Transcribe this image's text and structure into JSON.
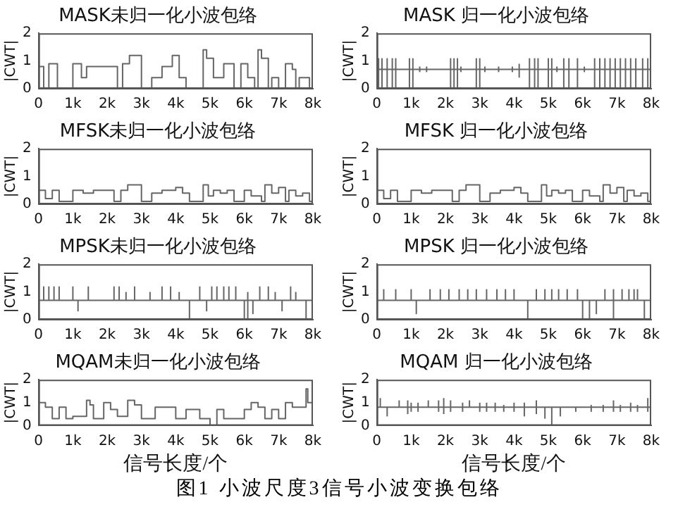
{
  "chart_data": [
    {
      "type": "step",
      "title": "MASK未归一化小波包络",
      "ylabel": "|CWT|",
      "color": "#666666",
      "grid": false,
      "marker": "none",
      "xlim": [
        0,
        8000
      ],
      "ylim": [
        0,
        2
      ],
      "yticks": [
        0,
        1,
        2
      ],
      "xticks": [
        {
          "value": 0,
          "label": "0"
        },
        {
          "value": 1000,
          "label": "1k"
        },
        {
          "value": 2000,
          "label": "2k"
        },
        {
          "value": 3000,
          "label": "3k"
        },
        {
          "value": 4000,
          "label": "4k"
        },
        {
          "value": 5000,
          "label": "5k"
        },
        {
          "value": 6000,
          "label": "6k"
        },
        {
          "value": 7000,
          "label": "7k"
        },
        {
          "value": 8000,
          "label": "8k"
        }
      ],
      "x": [
        0,
        150,
        300,
        550,
        1000,
        1250,
        1400,
        2300,
        2450,
        2650,
        3000,
        3300,
        3600,
        3900,
        4100,
        4300,
        4800,
        4900,
        5100,
        5400,
        5700,
        5900,
        6100,
        6300,
        6400,
        6500,
        6700,
        6800,
        7000,
        7200,
        7400,
        7500,
        7600,
        7900,
        8000
      ],
      "values": [
        0.8,
        0,
        0.9,
        0,
        0.9,
        0.4,
        0.8,
        0,
        0.9,
        1.2,
        0,
        0.4,
        0.8,
        1.2,
        0.4,
        0,
        1.4,
        1.1,
        0.4,
        0.9,
        0,
        0.9,
        0.4,
        0,
        1.4,
        1.1,
        0,
        0.4,
        0,
        0.9,
        0.7,
        0,
        0.4,
        0,
        0
      ]
    },
    {
      "type": "line",
      "title": "MASK 归一化小波包络",
      "ylabel": "|CWT|",
      "color": "#666666",
      "grid": false,
      "marker": "none",
      "xlim": [
        0,
        8000
      ],
      "ylim": [
        0,
        2
      ],
      "yticks": [
        0,
        1,
        2
      ],
      "xticks": [
        {
          "value": 0,
          "label": "0"
        },
        {
          "value": 1000,
          "label": "1k"
        },
        {
          "value": 2000,
          "label": "2k"
        },
        {
          "value": 3000,
          "label": "3k"
        },
        {
          "value": 4000,
          "label": "4k"
        },
        {
          "value": 5000,
          "label": "5k"
        },
        {
          "value": 6000,
          "label": "6k"
        },
        {
          "value": 7000,
          "label": "7k"
        },
        {
          "value": 8000,
          "label": "8k"
        }
      ],
      "x": [
        0,
        50,
        150,
        300,
        450,
        550,
        950,
        1050,
        1250,
        1450,
        2150,
        2250,
        2350,
        2450,
        2900,
        3000,
        3150,
        3550,
        3950,
        4150,
        4450,
        4600,
        4700,
        5000,
        5100,
        5250,
        5450,
        5600,
        5850,
        6050,
        6350,
        6500,
        6650,
        6800,
        6950,
        7100,
        7250,
        7400,
        7550,
        7750,
        7900,
        8000
      ],
      "values": [
        0.7,
        0.7,
        0.7,
        0.7,
        0.7,
        0.7,
        0.7,
        0.7,
        0.7,
        0.7,
        0.7,
        0.7,
        0.7,
        0.7,
        0.7,
        0.7,
        0.7,
        0.7,
        0.7,
        0.7,
        0.7,
        0.7,
        0.7,
        0.7,
        0.7,
        0.7,
        0.7,
        0.7,
        0.7,
        0.7,
        0.7,
        0.7,
        0.7,
        0.7,
        0.7,
        0.7,
        0.7,
        0.7,
        0.7,
        0.7,
        0.7,
        0.7
      ],
      "errors": [
        null,
        [
          0,
          1.1
        ],
        [
          0,
          1.1
        ],
        [
          0,
          1.1
        ],
        [
          0,
          1.1
        ],
        [
          0,
          1.1
        ],
        [
          0,
          1.1
        ],
        [
          0,
          1.1
        ],
        [
          0.6,
          0.8
        ],
        [
          0.6,
          0.8
        ],
        [
          0,
          1.1
        ],
        [
          0,
          1.1
        ],
        [
          0,
          1.1
        ],
        [
          0.6,
          0.8
        ],
        [
          0,
          1.1
        ],
        [
          0,
          1.1
        ],
        [
          0.6,
          0.8
        ],
        [
          0.6,
          0.8
        ],
        [
          0.6,
          0.8
        ],
        [
          0.4,
          0.9
        ],
        [
          0,
          1.1
        ],
        [
          0,
          1.1
        ],
        [
          0,
          1.1
        ],
        [
          0,
          1.1
        ],
        [
          0,
          1.1
        ],
        [
          0.6,
          0.8
        ],
        [
          0,
          1.1
        ],
        [
          0,
          1.1
        ],
        [
          0,
          1.1
        ],
        [
          0.6,
          0.8
        ],
        [
          0,
          1.1
        ],
        [
          0,
          1.1
        ],
        [
          0,
          1.1
        ],
        [
          0,
          1.1
        ],
        [
          0,
          1.1
        ],
        [
          0,
          1.1
        ],
        [
          0,
          1.1
        ],
        [
          0,
          1.1
        ],
        [
          0,
          1.1
        ],
        [
          0,
          1.1
        ],
        [
          0,
          1.1
        ],
        null
      ]
    },
    {
      "type": "step",
      "title": "MFSK未归一化小波包络",
      "ylabel": "|CWT|",
      "color": "#666666",
      "grid": false,
      "marker": "none",
      "xlim": [
        0,
        8000
      ],
      "ylim": [
        0,
        2
      ],
      "yticks": [
        0,
        1,
        2
      ],
      "xticks": [
        {
          "value": 0,
          "label": "0"
        },
        {
          "value": 1000,
          "label": "1k"
        },
        {
          "value": 2000,
          "label": "2k"
        },
        {
          "value": 3000,
          "label": "3k"
        },
        {
          "value": 4000,
          "label": "4k"
        },
        {
          "value": 5000,
          "label": "5k"
        },
        {
          "value": 6000,
          "label": "6k"
        },
        {
          "value": 7000,
          "label": "7k"
        },
        {
          "value": 8000,
          "label": "8k"
        }
      ],
      "x": [
        0,
        200,
        400,
        600,
        1000,
        1300,
        1600,
        2200,
        2400,
        2600,
        3000,
        3300,
        3600,
        4000,
        4200,
        4400,
        4800,
        4950,
        5100,
        5300,
        5500,
        5700,
        6000,
        6200,
        6500,
        6600,
        6800,
        7000,
        7200,
        7300,
        7500,
        7700,
        7900,
        8000
      ],
      "values": [
        0.5,
        0.2,
        0.5,
        0.1,
        0.5,
        0.4,
        0.5,
        0.1,
        0.5,
        0.7,
        0.1,
        0.4,
        0.5,
        0.6,
        0.4,
        0.1,
        0.7,
        0.3,
        0.5,
        0.4,
        0.5,
        0.1,
        0.5,
        0.3,
        0.1,
        0.7,
        0.4,
        0.6,
        0.1,
        0.5,
        0.3,
        0.4,
        0.1,
        0.1
      ]
    },
    {
      "type": "step",
      "title": "MFSK 归一化小波包络",
      "ylabel": "|CWT|",
      "color": "#666666",
      "grid": false,
      "marker": "none",
      "xlim": [
        0,
        8000
      ],
      "ylim": [
        0,
        2
      ],
      "yticks": [
        0,
        1,
        2
      ],
      "xticks": [
        {
          "value": 0,
          "label": "0"
        },
        {
          "value": 1000,
          "label": "1k"
        },
        {
          "value": 2000,
          "label": "2k"
        },
        {
          "value": 3000,
          "label": "3k"
        },
        {
          "value": 4000,
          "label": "4k"
        },
        {
          "value": 5000,
          "label": "5k"
        },
        {
          "value": 6000,
          "label": "6k"
        },
        {
          "value": 7000,
          "label": "7k"
        },
        {
          "value": 8000,
          "label": "8k"
        }
      ],
      "x": [
        0,
        200,
        400,
        600,
        1000,
        1300,
        1600,
        2200,
        2400,
        2600,
        3000,
        3300,
        3600,
        4000,
        4200,
        4400,
        4800,
        4950,
        5100,
        5300,
        5500,
        5700,
        6000,
        6200,
        6500,
        6600,
        6800,
        7000,
        7200,
        7300,
        7500,
        7700,
        7900,
        8000
      ],
      "values": [
        0.5,
        0.2,
        0.5,
        0.1,
        0.5,
        0.4,
        0.5,
        0.1,
        0.5,
        0.7,
        0.1,
        0.4,
        0.5,
        0.6,
        0.4,
        0.1,
        0.7,
        0.3,
        0.5,
        0.4,
        0.5,
        0.1,
        0.5,
        0.3,
        0.1,
        0.7,
        0.4,
        0.6,
        0.1,
        0.5,
        0.3,
        0.4,
        0.1,
        0.1
      ]
    },
    {
      "type": "line",
      "title": "MPSK未归一化小波包络",
      "ylabel": "|CWT|",
      "color": "#666666",
      "grid": false,
      "marker": "none",
      "xlim": [
        0,
        8000
      ],
      "ylim": [
        0,
        2
      ],
      "yticks": [
        0,
        1,
        2
      ],
      "xticks": [
        {
          "value": 0,
          "label": "0"
        },
        {
          "value": 1000,
          "label": "1k"
        },
        {
          "value": 2000,
          "label": "2k"
        },
        {
          "value": 3000,
          "label": "3k"
        },
        {
          "value": 4000,
          "label": "4k"
        },
        {
          "value": 5000,
          "label": "5k"
        },
        {
          "value": 6000,
          "label": "6k"
        },
        {
          "value": 7000,
          "label": "7k"
        },
        {
          "value": 8000,
          "label": "8k"
        }
      ],
      "x": [
        0,
        150,
        300,
        450,
        600,
        1000,
        1150,
        1450,
        2200,
        2350,
        2550,
        2800,
        3250,
        3600,
        3850,
        4100,
        4400,
        4700,
        4900,
        5050,
        5200,
        5400,
        5550,
        5750,
        6000,
        6100,
        6250,
        6450,
        6700,
        6900,
        7100,
        7350,
        7500,
        7800,
        8000
      ],
      "values": [
        0.7,
        0.7,
        0.7,
        0.7,
        0.7,
        0.7,
        0.7,
        0.7,
        0.7,
        0.7,
        0.7,
        0.7,
        0.7,
        0.7,
        0.7,
        0.7,
        0.7,
        0.7,
        0.7,
        0.7,
        0.7,
        0.7,
        0.7,
        0.7,
        0.7,
        0.7,
        0.7,
        0.7,
        0.7,
        0.7,
        0.7,
        0.7,
        0.7,
        0.7,
        0.7
      ],
      "errors": [
        null,
        [
          0.7,
          1.2
        ],
        [
          0.7,
          1.2
        ],
        [
          0.7,
          1.2
        ],
        [
          0.7,
          1.2
        ],
        [
          0.7,
          1.2
        ],
        [
          0.3,
          0.7
        ],
        [
          0.7,
          1.2
        ],
        [
          0.7,
          1.2
        ],
        [
          0.7,
          1.2
        ],
        [
          0.7,
          1.0
        ],
        [
          0.7,
          1.2
        ],
        [
          0.7,
          1.0
        ],
        [
          0.7,
          1.2
        ],
        [
          0.7,
          1.2
        ],
        [
          0.7,
          1.0
        ],
        [
          0,
          0.7
        ],
        [
          0.7,
          1.2
        ],
        [
          0.3,
          0.7
        ],
        [
          0.7,
          1.2
        ],
        [
          0.7,
          1.2
        ],
        [
          0.7,
          1.2
        ],
        [
          0.7,
          1.2
        ],
        [
          0.7,
          1.2
        ],
        [
          0,
          0.7
        ],
        [
          0,
          1.0
        ],
        [
          0.2,
          0.7
        ],
        [
          0.7,
          1.2
        ],
        [
          0.7,
          1.2
        ],
        [
          0.7,
          1.0
        ],
        [
          0.3,
          0.7
        ],
        [
          0.7,
          1.2
        ],
        [
          0.7,
          1.0
        ],
        [
          0,
          0.7
        ],
        null
      ]
    },
    {
      "type": "line",
      "title": "MPSK 归一化小波包络",
      "ylabel": "|CWT|",
      "color": "#666666",
      "grid": false,
      "marker": "none",
      "xlim": [
        0,
        8000
      ],
      "ylim": [
        0,
        2
      ],
      "yticks": [
        0,
        1,
        2
      ],
      "xticks": [
        {
          "value": 0,
          "label": "0"
        },
        {
          "value": 1000,
          "label": "1k"
        },
        {
          "value": 2000,
          "label": "2k"
        },
        {
          "value": 3000,
          "label": "3k"
        },
        {
          "value": 4000,
          "label": "4k"
        },
        {
          "value": 5000,
          "label": "5k"
        },
        {
          "value": 6000,
          "label": "6k"
        },
        {
          "value": 7000,
          "label": "7k"
        },
        {
          "value": 8000,
          "label": "8k"
        }
      ],
      "x": [
        0,
        200,
        550,
        1000,
        1150,
        1550,
        1850,
        2100,
        2400,
        2650,
        2900,
        3200,
        3500,
        3750,
        4000,
        4400,
        4650,
        4900,
        5100,
        5300,
        5550,
        5850,
        6000,
        6200,
        6400,
        6650,
        6900,
        7150,
        7350,
        7500,
        7600,
        7800,
        8000
      ],
      "values": [
        0.7,
        0.7,
        0.7,
        0.7,
        0.7,
        0.7,
        0.7,
        0.7,
        0.7,
        0.7,
        0.7,
        0.7,
        0.7,
        0.7,
        0.7,
        0.7,
        0.7,
        0.7,
        0.7,
        0.7,
        0.7,
        0.7,
        0.7,
        0.7,
        0.7,
        0.7,
        0.7,
        0.7,
        0.7,
        0.7,
        0.7,
        0.7,
        0.7
      ],
      "errors": [
        null,
        [
          0.7,
          1.1
        ],
        [
          0.7,
          1.1
        ],
        [
          0.7,
          1.1
        ],
        [
          0.2,
          0.7
        ],
        [
          0.7,
          1.1
        ],
        [
          0.7,
          1.1
        ],
        [
          0.7,
          1.1
        ],
        [
          0.7,
          1.1
        ],
        [
          0.7,
          1.1
        ],
        [
          0.7,
          1.1
        ],
        [
          0.7,
          1.1
        ],
        [
          0.7,
          1.1
        ],
        [
          0.7,
          1.1
        ],
        [
          0.7,
          1.1
        ],
        [
          0,
          0.7
        ],
        [
          0.7,
          1.1
        ],
        [
          0.7,
          1.1
        ],
        [
          0.7,
          1.1
        ],
        [
          0.7,
          1.1
        ],
        [
          0.7,
          1.1
        ],
        [
          0.7,
          1.1
        ],
        [
          0,
          0.7
        ],
        [
          0,
          0.7
        ],
        [
          0.2,
          0.7
        ],
        [
          0.7,
          1.1
        ],
        [
          0,
          1.1
        ],
        [
          0.7,
          1.1
        ],
        [
          0.7,
          1.1
        ],
        [
          0.7,
          1.1
        ],
        [
          0.7,
          1.1
        ],
        [
          0,
          0.7
        ],
        null
      ]
    },
    {
      "type": "step",
      "title": "MQAM未归一化小波包络",
      "ylabel": "|CWT|",
      "xlabel": "信号长度/个",
      "color": "#666666",
      "grid": false,
      "marker": "none",
      "xlim": [
        0,
        8000
      ],
      "ylim": [
        0,
        2
      ],
      "yticks": [
        0,
        1,
        2
      ],
      "xticks": [
        {
          "value": 0,
          "label": "0"
        },
        {
          "value": 1000,
          "label": "1k"
        },
        {
          "value": 2000,
          "label": "2k"
        },
        {
          "value": 3000,
          "label": "3k"
        },
        {
          "value": 4000,
          "label": "4k"
        },
        {
          "value": 5000,
          "label": "5k"
        },
        {
          "value": 6000,
          "label": "6k"
        },
        {
          "value": 7000,
          "label": "7k"
        },
        {
          "value": 8000,
          "label": "8k"
        }
      ],
      "x": [
        0,
        200,
        400,
        600,
        800,
        1000,
        1400,
        1500,
        1600,
        1900,
        2100,
        2300,
        2600,
        2800,
        3000,
        3400,
        4000,
        4300,
        4700,
        5000,
        5200,
        5400,
        6000,
        6200,
        6400,
        6600,
        6800,
        7000,
        7200,
        7400,
        7800,
        7850,
        8000
      ],
      "values": [
        1.0,
        0.8,
        0.3,
        0.8,
        0.3,
        0.4,
        1.1,
        0.9,
        0.3,
        1.0,
        0.7,
        0.4,
        1.1,
        0.9,
        0.3,
        0.8,
        0.3,
        0.7,
        0.3,
        0,
        0.7,
        0.3,
        0.7,
        1.0,
        0.8,
        0.3,
        0.7,
        0.3,
        1.0,
        0.8,
        1.6,
        1.0,
        1.0
      ]
    },
    {
      "type": "line",
      "title": "MQAM 归一化小波包络",
      "ylabel": "|CWT|",
      "xlabel": "信号长度/个",
      "color": "#666666",
      "grid": false,
      "marker": "none",
      "xlim": [
        0,
        8000
      ],
      "ylim": [
        0,
        2
      ],
      "yticks": [
        0,
        1,
        2
      ],
      "xticks": [
        {
          "value": 0,
          "label": "0"
        },
        {
          "value": 1000,
          "label": "1k"
        },
        {
          "value": 2000,
          "label": "2k"
        },
        {
          "value": 3000,
          "label": "3k"
        },
        {
          "value": 4000,
          "label": "4k"
        },
        {
          "value": 5000,
          "label": "5k"
        },
        {
          "value": 6000,
          "label": "6k"
        },
        {
          "value": 7000,
          "label": "7k"
        },
        {
          "value": 8000,
          "label": "8k"
        }
      ],
      "x": [
        0,
        100,
        300,
        650,
        900,
        1000,
        1200,
        1500,
        1800,
        1950,
        2150,
        2500,
        2700,
        3000,
        3200,
        3450,
        3700,
        4000,
        4300,
        4650,
        4900,
        5100,
        5350,
        5800,
        6250,
        6600,
        6900,
        7100,
        7400,
        7600,
        7900,
        8000
      ],
      "values": [
        0.8,
        0.8,
        0.8,
        0.8,
        0.8,
        0.8,
        0.8,
        0.8,
        0.8,
        0.8,
        0.8,
        0.8,
        0.8,
        0.8,
        0.8,
        0.8,
        0.8,
        0.8,
        0.8,
        0.8,
        0.8,
        0.8,
        0.8,
        0.8,
        0.8,
        0.8,
        0.8,
        0.8,
        0.8,
        0.8,
        0.8,
        0.8
      ],
      "errors": [
        null,
        [
          0.8,
          1.2
        ],
        [
          0.4,
          0.8
        ],
        [
          0.8,
          1.1
        ],
        [
          0.5,
          1.1
        ],
        [
          0.6,
          1.0
        ],
        [
          0.6,
          1.0
        ],
        [
          0.8,
          1.1
        ],
        [
          0.6,
          1.1
        ],
        [
          0.5,
          1.2
        ],
        [
          0.6,
          1.1
        ],
        [
          0.6,
          1.0
        ],
        [
          0.8,
          1.1
        ],
        [
          0.6,
          1.0
        ],
        [
          0.6,
          1.0
        ],
        [
          0.6,
          1.0
        ],
        [
          0.6,
          0.9
        ],
        [
          0.6,
          1.0
        ],
        [
          0.4,
          1.0
        ],
        [
          0.5,
          1.1
        ],
        [
          0.3,
          0.8
        ],
        [
          0,
          0.8
        ],
        [
          0.4,
          0.8
        ],
        [
          0.6,
          0.8
        ],
        [
          0.6,
          0.9
        ],
        [
          0.6,
          0.9
        ],
        [
          0.6,
          1.1
        ],
        [
          0.6,
          0.9
        ],
        [
          0.6,
          1.0
        ],
        [
          0.6,
          0.9
        ],
        [
          0.6,
          1.2
        ],
        null
      ],
      "annotations": [
        "图1 小波尺度3信号小波变换包络"
      ]
    }
  ]
}
